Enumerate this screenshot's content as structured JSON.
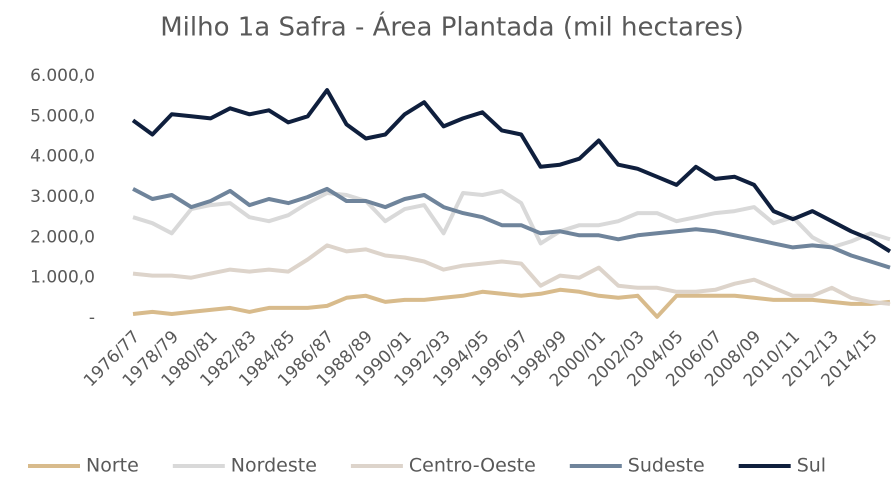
{
  "chart_data": {
    "type": "line",
    "title": "Milho 1a Safra - Área Plantada (mil hectares)",
    "categories": [
      "1976/77",
      null,
      "1978/79",
      null,
      "1980/81",
      null,
      "1982/83",
      null,
      "1984/85",
      null,
      "1986/87",
      null,
      "1988/89",
      null,
      "1990/91",
      null,
      "1992/93",
      null,
      "1994/95",
      null,
      "1996/97",
      null,
      "1998/99",
      null,
      "2000/01",
      null,
      "2002/03",
      null,
      "2004/05",
      null,
      "2006/07",
      null,
      "2008/09",
      null,
      "2010/11",
      null,
      "2012/13",
      null,
      "2014/15",
      null
    ],
    "ylim": [
      0,
      6000
    ],
    "yticks": [
      {
        "value": 0,
        "label": "-"
      },
      {
        "value": 1000,
        "label": "1.000,0"
      },
      {
        "value": 2000,
        "label": "2.000,0"
      },
      {
        "value": 3000,
        "label": "3.000,0"
      },
      {
        "value": 4000,
        "label": "4.000,0"
      },
      {
        "value": 5000,
        "label": "5.000,0"
      },
      {
        "value": 6000,
        "label": "6.000,0"
      }
    ],
    "grid": false,
    "legend": "bottom",
    "series": [
      {
        "name": "Norte",
        "color": "#d8bb8c",
        "values": [
          100,
          150,
          100,
          150,
          200,
          250,
          150,
          250,
          250,
          250,
          300,
          500,
          550,
          400,
          450,
          450,
          500,
          550,
          650,
          600,
          550,
          600,
          700,
          650,
          550,
          500,
          550,
          30,
          550,
          550,
          550,
          550,
          500,
          450,
          450,
          450,
          400,
          350,
          350,
          400
        ]
      },
      {
        "name": "Nordeste",
        "color": "#d9d9d9",
        "values": [
          2500,
          2350,
          2100,
          2700,
          2800,
          2850,
          2500,
          2400,
          2550,
          2850,
          3100,
          3050,
          2900,
          2400,
          2700,
          2800,
          2100,
          3100,
          3050,
          3150,
          2850,
          1850,
          2150,
          2300,
          2300,
          2400,
          2600,
          2600,
          2400,
          2500,
          2600,
          2650,
          2750,
          2350,
          2500,
          2000,
          1750,
          1900,
          2100,
          1950
        ]
      },
      {
        "name": "Centro-Oeste",
        "color": "#ddd4cb",
        "values": [
          1100,
          1050,
          1050,
          1000,
          1100,
          1200,
          1150,
          1200,
          1150,
          1450,
          1800,
          1650,
          1700,
          1550,
          1500,
          1400,
          1200,
          1300,
          1350,
          1400,
          1350,
          800,
          1050,
          1000,
          1250,
          800,
          750,
          750,
          650,
          650,
          700,
          850,
          950,
          750,
          550,
          550,
          750,
          500,
          400,
          350
        ]
      },
      {
        "name": "Sudeste",
        "color": "#6f849b",
        "values": [
          3200,
          2950,
          3050,
          2750,
          2900,
          3150,
          2800,
          2950,
          2850,
          3000,
          3200,
          2900,
          2900,
          2750,
          2950,
          3050,
          2750,
          2600,
          2500,
          2300,
          2300,
          2100,
          2150,
          2050,
          2050,
          1950,
          2050,
          2100,
          2150,
          2200,
          2150,
          2050,
          1950,
          1850,
          1750,
          1800,
          1750,
          1550,
          1400,
          1250
        ]
      },
      {
        "name": "Sul",
        "color": "#0f1f3d",
        "values": [
          4900,
          4550,
          5050,
          5000,
          4950,
          5200,
          5050,
          5150,
          4850,
          5000,
          5650,
          4800,
          4450,
          4550,
          5050,
          5350,
          4750,
          4950,
          5100,
          4650,
          4550,
          3750,
          3800,
          3950,
          4400,
          3800,
          3700,
          3500,
          3300,
          3750,
          3450,
          3500,
          3300,
          2650,
          2450,
          2650,
          2400,
          2150,
          1950,
          1650
        ]
      }
    ]
  }
}
